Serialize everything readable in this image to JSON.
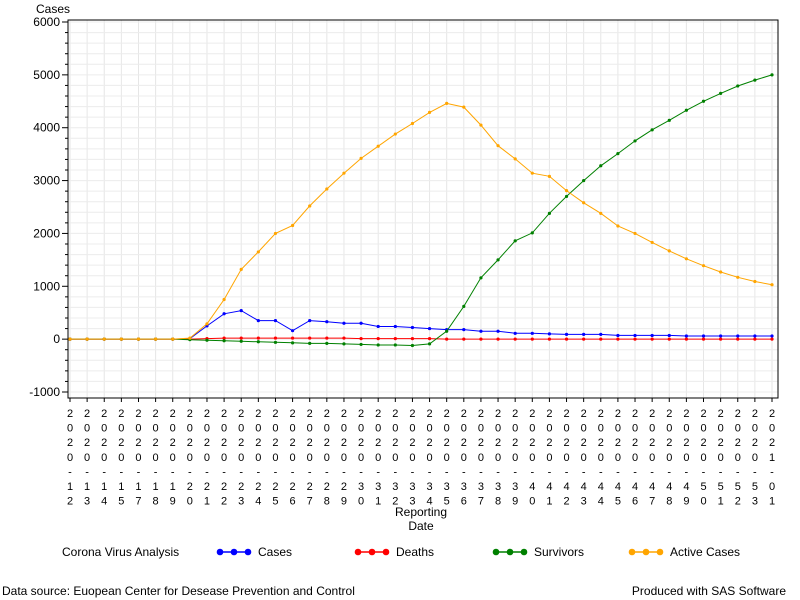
{
  "chart_data": {
    "type": "line",
    "ylabel": "Cases",
    "xlabel_line1": "Reporting",
    "xlabel_line2": "Date",
    "ylim": [
      -1000,
      6000
    ],
    "yticks": [
      -1000,
      0,
      1000,
      2000,
      3000,
      4000,
      5000,
      6000
    ],
    "categories": [
      "2020-12",
      "2020-13",
      "2020-14",
      "2020-15",
      "2020-17",
      "2020-18",
      "2020-19",
      "2020-20",
      "2020-21",
      "2020-22",
      "2020-23",
      "2020-24",
      "2020-25",
      "2020-26",
      "2020-27",
      "2020-28",
      "2020-29",
      "2020-30",
      "2020-31",
      "2020-32",
      "2020-33",
      "2020-34",
      "2020-35",
      "2020-36",
      "2020-37",
      "2020-38",
      "2020-39",
      "2020-40",
      "2020-41",
      "2020-42",
      "2020-43",
      "2020-44",
      "2020-45",
      "2020-46",
      "2020-47",
      "2020-48",
      "2020-49",
      "2020-50",
      "2020-51",
      "2020-52",
      "2020-53",
      "2021-01"
    ],
    "series": [
      {
        "name": "Cases",
        "color": "#0000ff",
        "values": [
          0,
          0,
          0,
          0,
          0,
          0,
          0,
          10,
          250,
          480,
          540,
          350,
          350,
          160,
          350,
          330,
          300,
          300,
          240,
          240,
          220,
          200,
          180,
          180,
          150,
          150,
          110,
          110,
          100,
          90,
          90,
          90,
          70,
          70,
          70,
          70,
          60,
          60,
          60,
          60,
          60,
          60
        ]
      },
      {
        "name": "Deaths",
        "color": "#ff0000",
        "values": [
          0,
          0,
          0,
          0,
          0,
          0,
          0,
          0,
          10,
          20,
          20,
          20,
          20,
          20,
          20,
          20,
          20,
          10,
          10,
          10,
          10,
          10,
          0,
          0,
          0,
          0,
          0,
          0,
          0,
          0,
          0,
          0,
          0,
          0,
          0,
          0,
          0,
          0,
          0,
          0,
          0,
          0
        ]
      },
      {
        "name": "Survivors",
        "color": "#008000",
        "values": [
          0,
          0,
          0,
          0,
          0,
          0,
          0,
          -10,
          -20,
          -30,
          -40,
          -50,
          -60,
          -70,
          -80,
          -80,
          -90,
          -100,
          -110,
          -110,
          -120,
          -90,
          150,
          620,
          1160,
          1500,
          1860,
          2010,
          2380,
          2700,
          3000,
          3280,
          3510,
          3750,
          3960,
          4140,
          4330,
          4500,
          4650,
          4790,
          4900,
          5000
        ]
      },
      {
        "name": "Active Cases",
        "color": "#ffa500",
        "values": [
          0,
          0,
          0,
          0,
          0,
          0,
          0,
          20,
          290,
          750,
          1320,
          1650,
          2000,
          2150,
          2520,
          2840,
          3140,
          3420,
          3650,
          3880,
          4080,
          4290,
          4460,
          4390,
          4050,
          3660,
          3410,
          3140,
          3080,
          2810,
          2580,
          2380,
          2140,
          2000,
          1830,
          1670,
          1520,
          1390,
          1270,
          1170,
          1090,
          1030
        ]
      }
    ]
  },
  "legend": {
    "title": "Corona Virus Analysis",
    "items": [
      "Cases",
      "Deaths",
      "Survivors",
      "Active Cases"
    ]
  },
  "footer": {
    "left": "Data source: Euopean Center for Desease Prevention and Control",
    "right": "Produced with SAS Software"
  }
}
